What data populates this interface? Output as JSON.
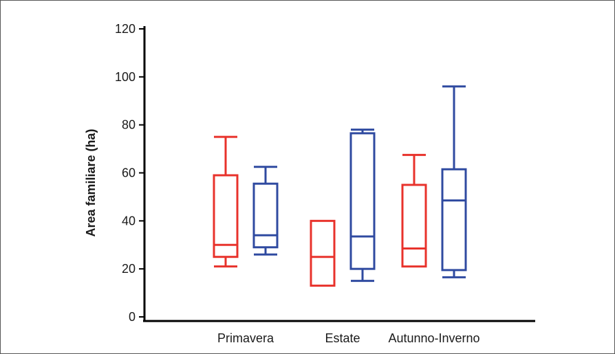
{
  "chart_data": {
    "type": "boxplot",
    "title": "",
    "xlabel": "",
    "ylabel": "Area familiare (ha)",
    "ylim": [
      0,
      120
    ],
    "yticks": [
      0,
      20,
      40,
      60,
      80,
      100,
      120
    ],
    "grid": false,
    "categories": [
      "Primavera",
      "Estate",
      "Autunno-Inverno"
    ],
    "series": [
      {
        "color": "#e8322b",
        "boxes": [
          {
            "category": "Primavera",
            "min": 21,
            "q1": 25,
            "median": 30,
            "q3": 59,
            "max": 75
          },
          {
            "category": "Estate",
            "min": 13,
            "q1": 13,
            "median": 25,
            "q3": 40,
            "max": 40
          },
          {
            "category": "Autunno-Inverno",
            "min": 21,
            "q1": 21,
            "median": 28.5,
            "q3": 55,
            "max": 67.5
          }
        ]
      },
      {
        "color": "#2f4aa0",
        "boxes": [
          {
            "category": "Primavera",
            "min": 26,
            "q1": 29,
            "median": 34,
            "q3": 55.5,
            "max": 62.5
          },
          {
            "category": "Estate",
            "min": 15,
            "q1": 20,
            "median": 33.5,
            "q3": 76.5,
            "max": 78
          },
          {
            "category": "Autunno-Inverno",
            "min": 16.5,
            "q1": 19.5,
            "median": 48.5,
            "q3": 61.5,
            "max": 96
          }
        ]
      }
    ]
  }
}
